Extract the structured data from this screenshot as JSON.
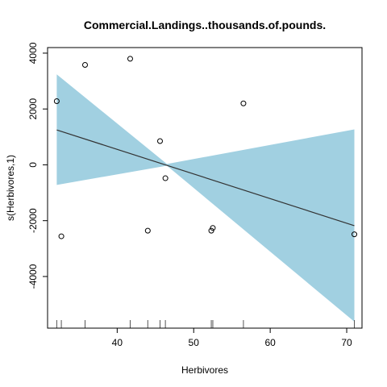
{
  "chart_data": {
    "type": "scatter",
    "title": "Commercial.Landings..thousands.of.pounds.",
    "xlabel": "Herbivores",
    "ylabel": "s(Herbivores,1)",
    "xlim": [
      30.9,
      72.0
    ],
    "ylim": [
      -5850,
      4200
    ],
    "x_ticks": [
      40,
      50,
      60,
      70
    ],
    "y_ticks": [
      -4000,
      -2000,
      0,
      2000,
      4000
    ],
    "x_tick_labels": [
      "40",
      "50",
      "60",
      "70"
    ],
    "y_tick_labels": [
      "-4000",
      "-2000",
      "0",
      "2000",
      "4000"
    ],
    "grid": false,
    "legend": "none",
    "colors": {
      "band": "#a1d0e1",
      "line": "#333333",
      "points": "#000000"
    },
    "fit_line": {
      "x": [
        32.1,
        71.0
      ],
      "y": [
        1250,
        -2180
      ]
    },
    "confidence_band": {
      "x": [
        32.1,
        46.5,
        71.0
      ],
      "upper": [
        3240,
        30,
        1270
      ],
      "lower": [
        -720,
        -30,
        -5620
      ]
    },
    "points": {
      "x": [
        32.1,
        32.7,
        35.8,
        41.7,
        44.0,
        45.6,
        46.3,
        52.3,
        52.5,
        56.5,
        71.0
      ],
      "y": [
        2280,
        -2560,
        3580,
        3800,
        -2360,
        850,
        -480,
        -2360,
        -2260,
        2200,
        -2490
      ]
    },
    "rug": [
      32.1,
      32.7,
      35.8,
      41.7,
      44.0,
      45.6,
      46.3,
      52.3,
      52.5,
      56.5,
      71.0
    ]
  }
}
